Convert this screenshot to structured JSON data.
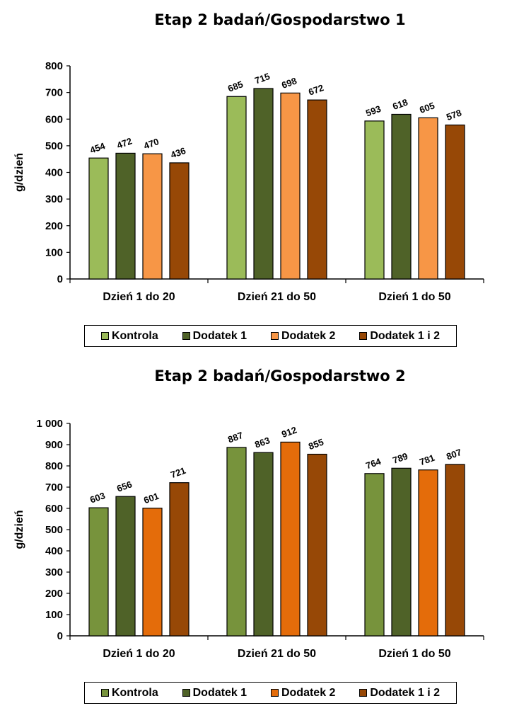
{
  "chart_data": [
    {
      "type": "bar",
      "title": "Etap 2 badań/Gospodarstwo 1",
      "ylabel": "g/dzień",
      "xlabel": "",
      "ylim": [
        0,
        800
      ],
      "yticks": [
        "0",
        "100",
        "200",
        "300",
        "400",
        "500",
        "600",
        "700",
        "800"
      ],
      "categories": [
        "Dzień 1 do 20",
        "Dzień 21 do 50",
        "Dzień 1 do 50"
      ],
      "series": [
        {
          "name": "Kontrola",
          "color": "#9bbb59",
          "values": [
            454,
            685,
            593
          ]
        },
        {
          "name": "Dodatek 1",
          "color": "#4f6228",
          "values": [
            472,
            715,
            618
          ]
        },
        {
          "name": "Dodatek 2",
          "color": "#f79646",
          "values": [
            470,
            698,
            605
          ]
        },
        {
          "name": "Dodatek 1 i 2",
          "color": "#974806",
          "values": [
            436,
            672,
            578
          ]
        }
      ],
      "legend_position": "bottom"
    },
    {
      "type": "bar",
      "title": "Etap 2 badań/Gospodarstwo 2",
      "ylabel": "g/dzień",
      "xlabel": "",
      "ylim": [
        0,
        1000
      ],
      "yticks": [
        "0",
        "100",
        "200",
        "300",
        "400",
        "500",
        "600",
        "700",
        "800",
        "900",
        "1 000"
      ],
      "categories": [
        "Dzień 1 do 20",
        "Dzień 21 do 50",
        "Dzień 1 do 50"
      ],
      "series": [
        {
          "name": "Kontrola",
          "color": "#77933c",
          "values": [
            603,
            887,
            764
          ]
        },
        {
          "name": "Dodatek 1",
          "color": "#4f6228",
          "values": [
            656,
            863,
            789
          ]
        },
        {
          "name": "Dodatek 2",
          "color": "#e46c0a",
          "values": [
            601,
            912,
            781
          ]
        },
        {
          "name": "Dodatek 1 i 2",
          "color": "#974806",
          "values": [
            721,
            855,
            807
          ]
        }
      ],
      "legend_position": "bottom"
    }
  ]
}
